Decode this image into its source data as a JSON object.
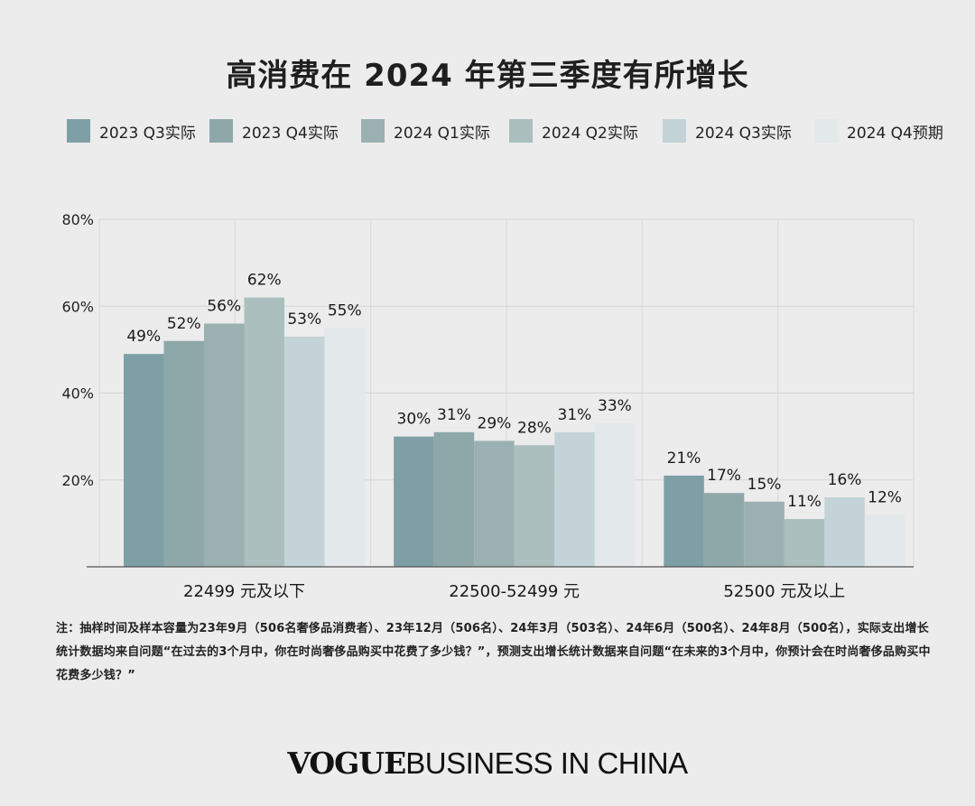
{
  "colors": {
    "background": "#ececec",
    "series": [
      "#7f9fa6",
      "#8ea8aa",
      "#9bb0b1",
      "#abbfbf",
      "#c3d3d8",
      "#e3e8ea"
    ]
  },
  "logo": {
    "brand": "VOGUE",
    "rest": "BUSINESS IN CHINA"
  },
  "note": "注：抽样时间及样本容量为23年9月（506名奢侈品消费者）、23年12月（506名）、24年3月（503名）、24年6月（500名）、24年8月（500名），实际支出增长统计数据均来自问题“在过去的3个月中，你在时尚奢侈品购买中花费了多少钱？”，预测支出增长统计数据来自问题“在未来的3个月中，你预计会在时尚奢侈品购买中花费多少钱？”",
  "chart_data": {
    "type": "bar",
    "title": "高消费在 2024 年第三季度有所增长",
    "categories": [
      "22499 元及以下",
      "22500-52499 元",
      "52500 元及以上"
    ],
    "series": [
      {
        "name": "2023 Q3实际",
        "values": [
          49,
          30,
          21
        ]
      },
      {
        "name": "2023 Q4实际",
        "values": [
          52,
          31,
          17
        ]
      },
      {
        "name": "2024 Q1实际",
        "values": [
          56,
          29,
          15
        ]
      },
      {
        "name": "2024 Q2实际",
        "values": [
          62,
          28,
          11
        ]
      },
      {
        "name": "2024 Q3实际",
        "values": [
          53,
          31,
          16
        ]
      },
      {
        "name": "2024 Q4预期",
        "values": [
          55,
          33,
          12
        ]
      }
    ],
    "ylim": [
      0,
      80
    ],
    "yticks": [
      "20%",
      "40%",
      "60%",
      "80%"
    ],
    "value_suffix": "%",
    "legend_position": "top",
    "grid": true
  }
}
